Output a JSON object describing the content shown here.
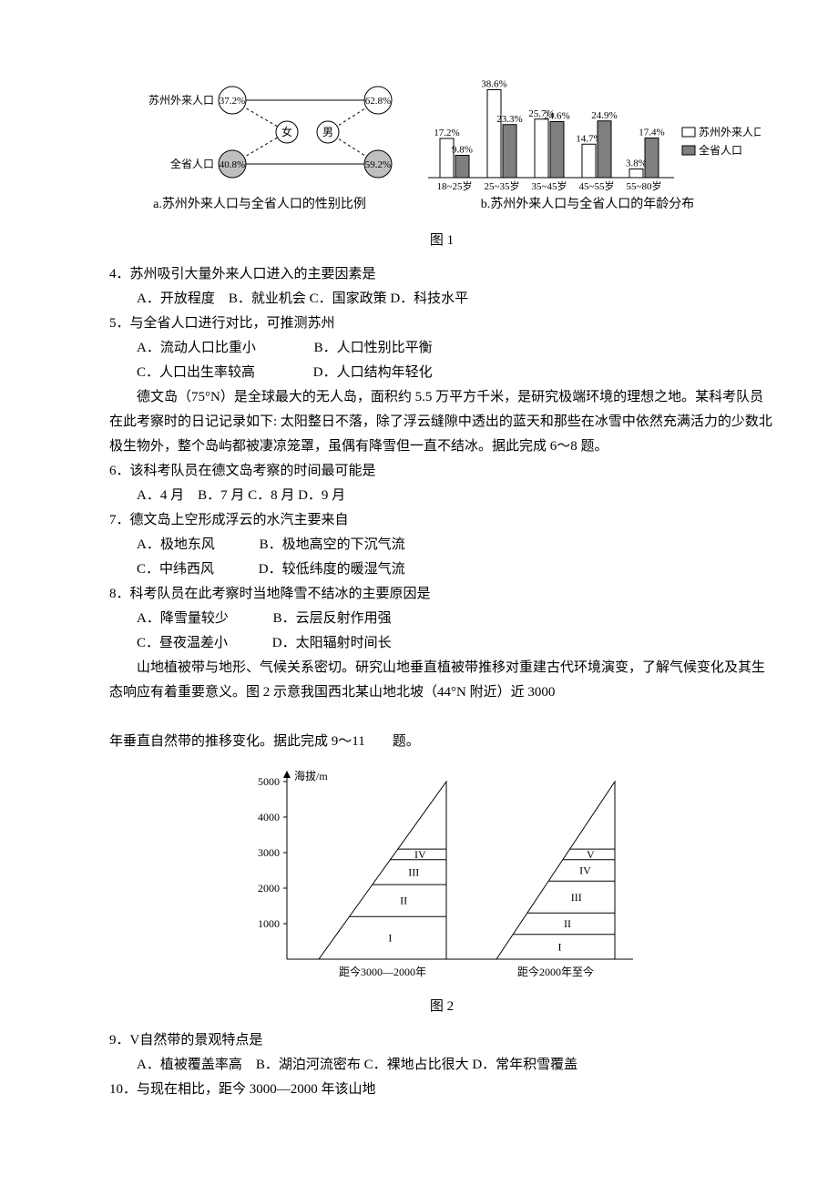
{
  "fig1": {
    "panelA": {
      "caption": "a.苏州外来人口与全省人口的性别比例",
      "rowLabels": [
        "苏州外来人口",
        "全省人口"
      ],
      "centerLabels": [
        "女",
        "男"
      ],
      "values": {
        "su_f": "37.2%",
        "su_m": "62.8%",
        "qs_f": "40.8%",
        "qs_m": "59.2%"
      },
      "colors": {
        "open": "#ffffff",
        "shade": "#bfbfbf",
        "stroke": "#000000"
      }
    },
    "panelB": {
      "caption": "b.苏州外来人口与全省人口的年龄分布",
      "type": "bar",
      "categories": [
        "18~25岁",
        "25~35岁",
        "35~45岁",
        "45~55岁",
        "55~80岁"
      ],
      "series": [
        {
          "name": "苏州外来人口",
          "color": "#ffffff",
          "values": [
            17.2,
            38.6,
            25.7,
            14.7,
            3.8
          ]
        },
        {
          "name": "全省人口",
          "color": "#7f7f7f",
          "values": [
            9.8,
            23.3,
            24.6,
            24.9,
            17.4
          ]
        }
      ],
      "value_labels": [
        [
          "17.2%",
          "38.6%",
          "25.7%",
          "14.7%",
          "3.8%"
        ],
        [
          "9.8%",
          "23.3%",
          "24.6%",
          "24.9%",
          "17.4%"
        ]
      ],
      "ylim": [
        0,
        40
      ],
      "label_fontsize": 11
    },
    "masterCaption": "图 1"
  },
  "q4": {
    "stem": "4．苏州吸引大量外来人口进入的主要因素是",
    "opts": "A．开放程度　B．就业机会 C．国家政策 D．科技水平"
  },
  "q5": {
    "stem": "5．与全省人口进行对比，可推测苏州",
    "optA": "A．流动人口比重小",
    "optB": "B．人口性别比平衡",
    "optC": "C．人口出生率较高",
    "optD": "D．人口结构年轻化"
  },
  "passage1": "德文岛（75°N）是全球最大的无人岛，面积约 5.5 万平方千米，是研究极端环境的理想之地。某科考队员在此考察时的日记记录如下: 太阳整日不落，除了浮云缝隙中透出的蓝天和那些在冰雪中依然充满活力的少数北极生物外，整个岛屿都被凄凉笼罩，虽偶有降雪但一直不结冰。据此完成 6～8 题。",
  "q6": {
    "stem": "6．该科考队员在德文岛考察的时间最可能是",
    "opts": "A．4 月　B．7 月 C．8 月 D．9 月"
  },
  "q7": {
    "stem": "7．德文岛上空形成浮云的水汽主要来自",
    "optA": "A．极地东风",
    "optB": "B．极地高空的下沉气流",
    "optC": "C．中纬西风",
    "optD": "D．较低纬度的暖湿气流"
  },
  "q8": {
    "stem": "8．科考队员在此考察时当地降雪不结冰的主要原因是",
    "optA": "A．降雪量较少",
    "optB": "B．云层反射作用强",
    "optC": "C．昼夜温差小",
    "optD": "D．太阳辐射时间长"
  },
  "passage2a": "山地植被带与地形、气候关系密切。研究山地垂直植被带推移对重建古代环境演变，了解气候变化及其生态响应有着重要意义。图 2 示意我国西北某山地北坡（44°N 附近）近 3000",
  "passage2b": "年垂直自然带的推移变化。据此完成 9～11　　题。",
  "fig2": {
    "masterCaption": "图 2",
    "yAxisLabel": "海拔/m",
    "yticks": [
      "1000",
      "2000",
      "3000",
      "4000",
      "5000"
    ],
    "left": {
      "caption": "距今3000—2000年",
      "zones": [
        "I",
        "II",
        "III",
        "IV"
      ],
      "boundaries": [
        0,
        1200,
        2100,
        2800,
        3100,
        5000
      ]
    },
    "right": {
      "caption": "距今2000年至今",
      "zones": [
        "I",
        "II",
        "III",
        "IV",
        "V"
      ],
      "boundaries": [
        0,
        700,
        1300,
        2200,
        2800,
        3100,
        5000
      ]
    },
    "stroke": "#000000"
  },
  "q9": {
    "stem": "9．V自然带的景观特点是",
    "opts": "A．植被覆盖率高　B．湖泊河流密布 C．裸地占比很大 D．常年积雪覆盖"
  },
  "q10": {
    "stem": "10．与现在相比，距今 3000—2000 年该山地"
  }
}
